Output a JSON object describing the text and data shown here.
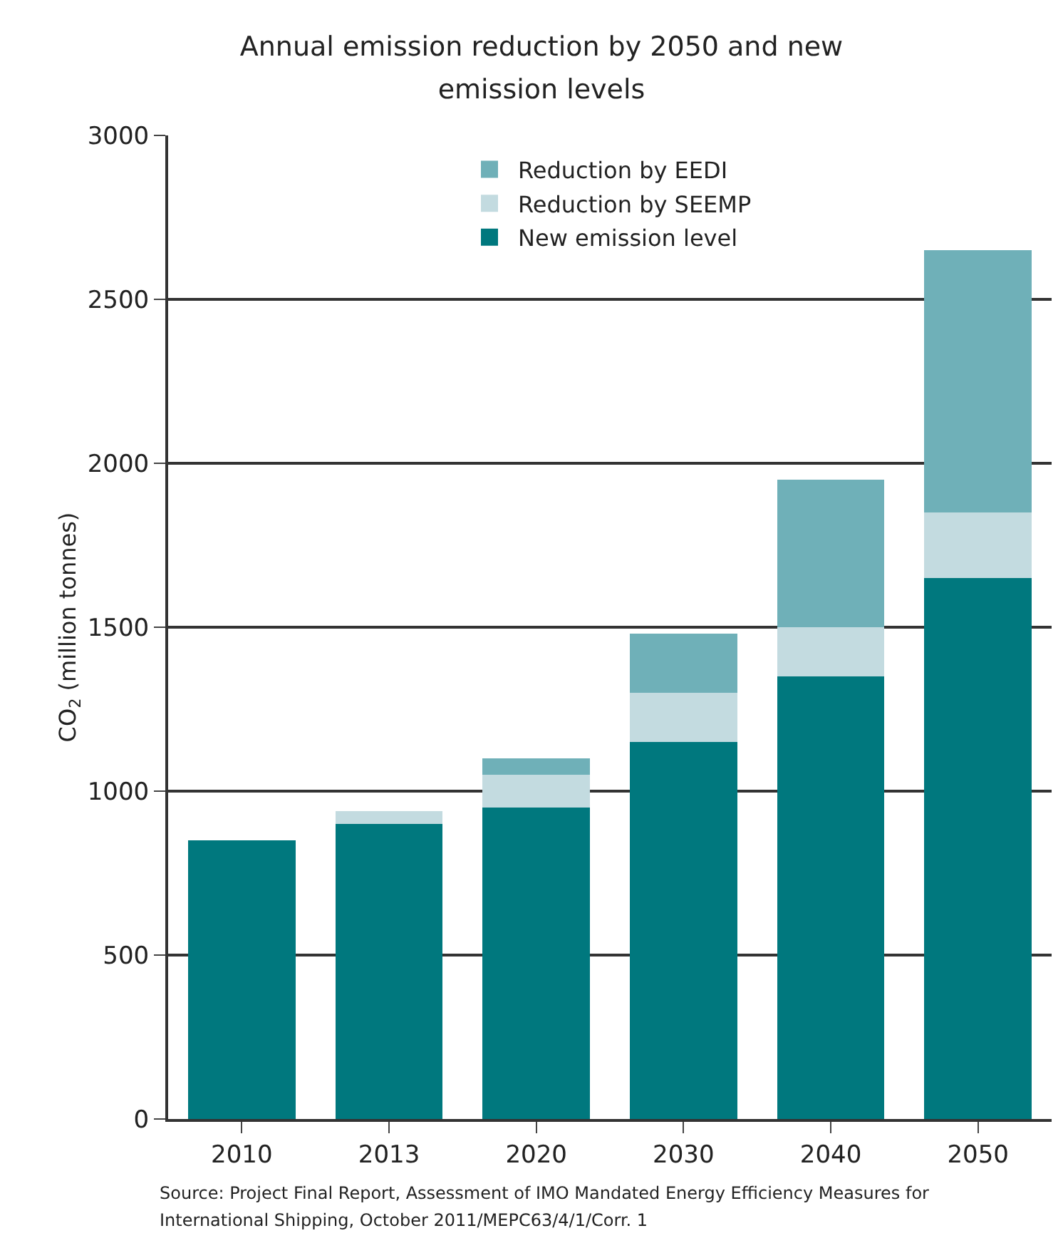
{
  "chart_data": {
    "type": "bar",
    "title": "Annual emission reduction by 2050 and new emission levels",
    "ylabel": "CO$_{2}$ (million tonnes)",
    "categories": [
      "2010",
      "2013",
      "2020",
      "2030",
      "2040",
      "2050"
    ],
    "stacked": true,
    "series": [
      {
        "name": "New emission level",
        "color": "#00787e",
        "values": [
          850,
          900,
          950,
          1150,
          1350,
          1650
        ]
      },
      {
        "name": "Reduction by SEEMP",
        "color": "#c3dbe0",
        "values": [
          null,
          40,
          100,
          150,
          150,
          200
        ]
      },
      {
        "name": "Reduction by EEDI",
        "color": "#6fb0b8",
        "values": [
          null,
          null,
          50,
          180,
          450,
          800
        ]
      }
    ],
    "ylim": [
      0,
      3000
    ],
    "yticks": [
      0,
      500,
      1000,
      1500,
      2000,
      2500,
      3000
    ],
    "grid": "y",
    "legend": "top",
    "annotations": [
      "Source: Project Final Report, Assessment of IMO Mandated Energy Efficiency Measures for International Shipping, October 2011/MEPC63/4/1/Corr. 1"
    ]
  }
}
